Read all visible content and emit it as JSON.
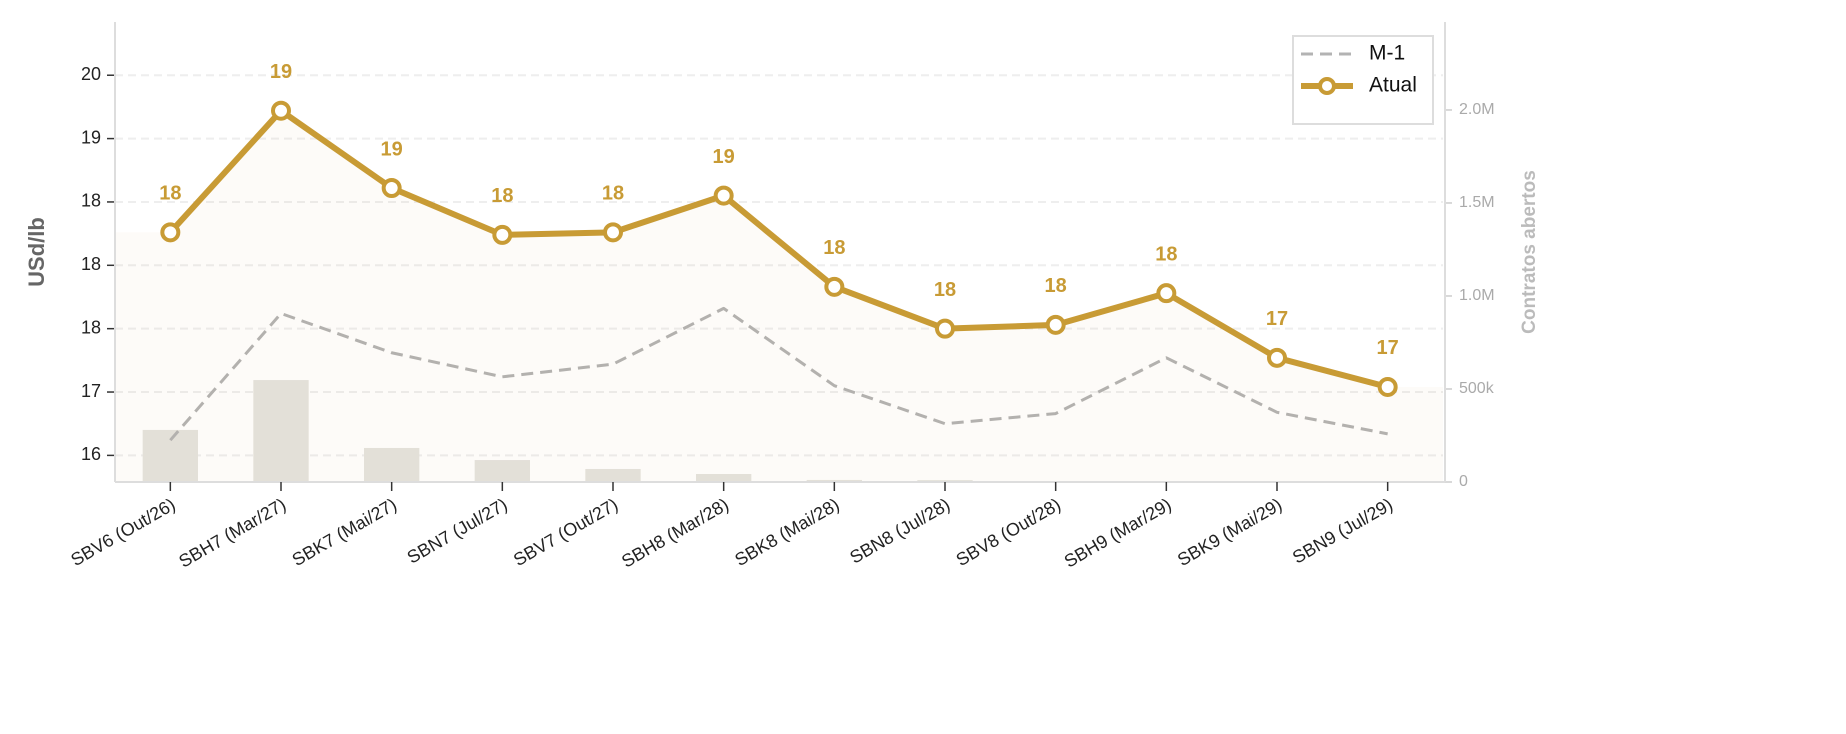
{
  "chart_data": {
    "type": "line",
    "y_label": "USd/lb",
    "y2_label": "Contratos abertos",
    "categories": [
      "SBV6 (Out/26)",
      "SBH7 (Mar/27)",
      "SBK7 (Mai/27)",
      "SBN7 (Jul/27)",
      "SBV7 (Out/27)",
      "SBH8 (Mar/28)",
      "SBK8 (Mai/28)",
      "SBN8 (Jul/28)",
      "SBV8 (Out/28)",
      "SBH9 (Mar/29)",
      "SBK9 (Mai/29)",
      "SBN9 (Jul/29)"
    ],
    "series": [
      {
        "name": "M-1",
        "color": "#b3b3b3",
        "dashed": true,
        "values": [
          16.62,
          17.62,
          17.31,
          17.12,
          17.22,
          17.66,
          17.05,
          16.75,
          16.83,
          17.27,
          16.84,
          16.67
        ]
      },
      {
        "name": "Atual",
        "color": "#c89b35",
        "markers": true,
        "area": true,
        "values": [
          18.26,
          19.22,
          18.61,
          18.24,
          18.26,
          18.55,
          17.83,
          17.5,
          17.53,
          17.78,
          17.27,
          17.04
        ],
        "value_labels": [
          "18",
          "19",
          "19",
          "18",
          "18",
          "19",
          "18",
          "18",
          "18",
          "18",
          "17",
          "17"
        ]
      },
      {
        "type": "bar",
        "axis": "y2",
        "color": "#e5e3de",
        "values": [
          280000,
          548000,
          183000,
          118000,
          70000,
          43000,
          11000,
          10000,
          5000,
          0,
          0,
          0
        ]
      }
    ],
    "ylim": [
      16.29,
      19.92
    ],
    "yticks": [
      {
        "value": 16.5,
        "label": "16"
      },
      {
        "value": 17.0,
        "label": "17"
      },
      {
        "value": 17.5,
        "label": "18"
      },
      {
        "value": 18.0,
        "label": "18"
      },
      {
        "value": 18.5,
        "label": "18"
      },
      {
        "value": 19.0,
        "label": "19"
      },
      {
        "value": 19.5,
        "label": "20"
      }
    ],
    "y2lim": [
      0,
      2473000
    ],
    "y2ticks": [
      0,
      {
        "value": 500000,
        "label": "500k"
      },
      {
        "value": 1000000,
        "label": "1.0M"
      },
      {
        "value": 1500000,
        "label": "1.5M"
      },
      {
        "value": 2000000,
        "label": "2.0M"
      }
    ],
    "grid": true,
    "legend": "upper right"
  }
}
